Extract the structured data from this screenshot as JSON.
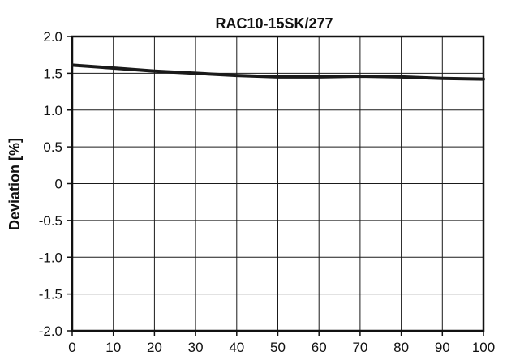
{
  "chart_data": {
    "type": "line",
    "title": "RAC10-15SK/277",
    "ylabel": "Deviation [%]",
    "xlabel": "",
    "xlim": [
      0,
      100
    ],
    "ylim": [
      -2.0,
      2.0
    ],
    "x_ticks": [
      0,
      10,
      20,
      30,
      40,
      50,
      60,
      70,
      80,
      90,
      100
    ],
    "y_ticks": [
      2.0,
      1.5,
      1.0,
      0.5,
      0,
      -0.5,
      -1.0,
      -1.5,
      -2.0
    ],
    "x_tick_labels": [
      "0",
      "10",
      "20",
      "30",
      "40",
      "50",
      "60",
      "70",
      "80",
      "90",
      "100"
    ],
    "y_tick_labels": [
      "2.0",
      "1.5",
      "1.0",
      "0.5",
      "0",
      "-0.5",
      "-1.0",
      "-1.5",
      "-2.0"
    ],
    "grid": true,
    "series": [
      {
        "x": [
          0,
          10,
          20,
          30,
          40,
          50,
          60,
          70,
          80,
          90,
          100
        ],
        "y": [
          1.61,
          1.57,
          1.53,
          1.5,
          1.47,
          1.45,
          1.45,
          1.46,
          1.45,
          1.43,
          1.42
        ]
      }
    ],
    "colors": {
      "line": "#1a1a1a",
      "grid": "#1a1a1a",
      "frame": "#111111"
    }
  }
}
